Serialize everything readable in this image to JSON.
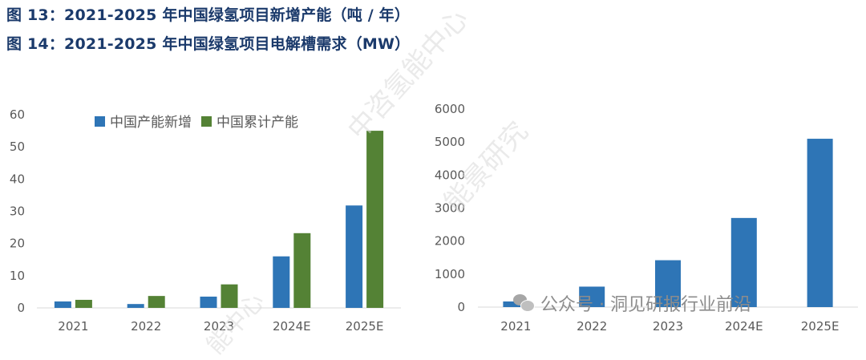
{
  "titles": {
    "fig13": "图 13：2021-2025 年中国绿氢项目新增产能（吨 / 年）",
    "fig14": "图 14：2021-2025 年中国绿氢项目电解槽需求（MW）"
  },
  "watermark": {
    "main": "中咨氢能中心",
    "secondary": "能景研究",
    "lower": "能中心",
    "wechat": "公众号 · 洞见研报行业前沿"
  },
  "colors": {
    "blue": "#2e75b6",
    "green": "#548235",
    "axis": "#d9d9d9",
    "tick": "#595959"
  },
  "chart_data": [
    {
      "type": "bar",
      "categories": [
        "2021",
        "2022",
        "2023",
        "2024E",
        "2025E"
      ],
      "series": [
        {
          "name": "中国产能新增",
          "color": "#2e75b6",
          "values": [
            2,
            1.2,
            3.5,
            16,
            31.8
          ]
        },
        {
          "name": "中国累计产能",
          "color": "#548235",
          "values": [
            2.5,
            3.7,
            7.3,
            23.2,
            55
          ]
        }
      ],
      "ylim": [
        0,
        60
      ],
      "yticks": [
        0,
        10,
        20,
        30,
        40,
        50,
        60
      ],
      "legend": "top"
    },
    {
      "type": "bar",
      "categories": [
        "2021",
        "2022",
        "2023",
        "2024E",
        "2025E"
      ],
      "series": [
        {
          "color": "#2e75b6",
          "values": [
            170,
            620,
            1420,
            2700,
            5100
          ]
        }
      ],
      "ylim": [
        0,
        6000
      ],
      "yticks": [
        0,
        1000,
        2000,
        3000,
        4000,
        5000,
        6000
      ]
    }
  ]
}
